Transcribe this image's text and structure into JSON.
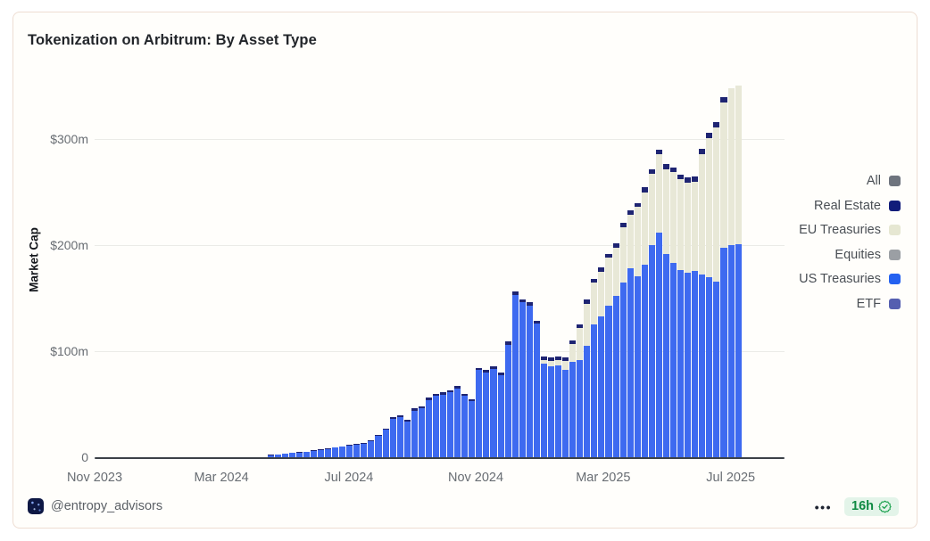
{
  "card": {
    "title": "Tokenization on Arbitrum: By Asset Type"
  },
  "y_axis": {
    "label": "Market Cap",
    "ticks": [
      {
        "label": "$300m",
        "value": 300
      },
      {
        "label": "$200m",
        "value": 200
      },
      {
        "label": "$100m",
        "value": 100
      },
      {
        "label": "0",
        "value": 0
      }
    ]
  },
  "x_axis": {
    "ticks": [
      {
        "label": "Nov 2023",
        "pos": 0.0
      },
      {
        "label": "Mar 2024",
        "pos": 0.196
      },
      {
        "label": "Jul 2024",
        "pos": 0.393
      },
      {
        "label": "Nov 2024",
        "pos": 0.589
      },
      {
        "label": "Mar 2025",
        "pos": 0.786
      },
      {
        "label": "Jul 2025",
        "pos": 0.983
      }
    ]
  },
  "legend": [
    {
      "label": "All",
      "color": "#6e747e"
    },
    {
      "label": "Real Estate",
      "color": "#111c7a"
    },
    {
      "label": "EU Treasuries",
      "color": "#e6e7d2"
    },
    {
      "label": "Equities",
      "color": "#9b9fa4"
    },
    {
      "label": "US Treasuries",
      "color": "#2461f0"
    },
    {
      "label": "ETF",
      "color": "#555fb0"
    }
  ],
  "footer": {
    "handle": "@entropy_advisors",
    "menu": "•••",
    "age": "16h"
  },
  "chart_data": {
    "type": "bar",
    "stacked": true,
    "title": "Tokenization on Arbitrum: By Asset Type",
    "ylabel": "Market Cap",
    "xlabel": "",
    "unit": "USD millions",
    "ylim": [
      0,
      375
    ],
    "grid": "horizontal",
    "legend_position": "right",
    "x_range": [
      "Nov 2023",
      "mid-Jul 2025"
    ],
    "cadence": "weekly",
    "x_tick_labels": [
      "Nov 2023",
      "Mar 2024",
      "Jul 2024",
      "Nov 2024",
      "Mar 2025",
      "Jul 2025"
    ],
    "legend_order": [
      "All",
      "Real Estate",
      "EU Treasuries",
      "Equities",
      "US Treasuries",
      "ETF"
    ],
    "note": "Equities, ETF and All appear in the legend but have no visible area in the chart",
    "series": [
      {
        "name": "US Treasuries",
        "color": "#3e6af0",
        "values": [
          0,
          0,
          0,
          0,
          0,
          0,
          0,
          0,
          0,
          0,
          0,
          0,
          0,
          0,
          0,
          0,
          0,
          0,
          0,
          0,
          0,
          0,
          0,
          0,
          2,
          2.5,
          3,
          4,
          4.5,
          5,
          6,
          7,
          8,
          9,
          10,
          11,
          12,
          13,
          15,
          20,
          26,
          36,
          38,
          34,
          44,
          46,
          54,
          58,
          59,
          61,
          65,
          58,
          53,
          82,
          80,
          83,
          77,
          106,
          153,
          146,
          143,
          126,
          88,
          86,
          87,
          82,
          90,
          92,
          105,
          125,
          133,
          143,
          152,
          165,
          178,
          171,
          182,
          200,
          212,
          192,
          183,
          177,
          174,
          176,
          172,
          170,
          166,
          198,
          200,
          201
        ]
      },
      {
        "name": "EU Treasuries",
        "color": "#e8e8d7",
        "values": [
          0,
          0,
          0,
          0,
          0,
          0,
          0,
          0,
          0,
          0,
          0,
          0,
          0,
          0,
          0,
          0,
          0,
          0,
          0,
          0,
          0,
          0,
          0,
          0,
          0,
          0,
          0,
          0,
          0,
          0,
          0,
          0,
          0,
          0,
          0,
          0,
          0,
          0,
          0,
          0,
          0,
          0,
          0,
          0,
          0,
          0,
          0,
          0,
          0,
          0,
          0,
          0,
          0,
          0,
          0,
          0,
          0,
          0,
          0,
          0,
          0,
          0,
          4,
          5,
          5,
          9,
          17,
          30,
          40,
          40,
          42,
          45,
          46,
          52,
          51,
          65,
          68,
          67,
          74,
          80,
          86,
          85,
          85,
          84,
          114,
          131,
          145,
          137,
          148,
          150
        ]
      },
      {
        "name": "Real Estate",
        "color": "#1e2472",
        "values": [
          0,
          0,
          0,
          0,
          0,
          0,
          0,
          0,
          0,
          0,
          0,
          0,
          0,
          0,
          0,
          0,
          0,
          0,
          0,
          0,
          0,
          0,
          0,
          0,
          0.2,
          0.2,
          0.3,
          0.3,
          0.3,
          0.3,
          0.4,
          0.4,
          0.4,
          0.5,
          0.5,
          0.5,
          0.6,
          0.6,
          0.7,
          0.8,
          1,
          1.5,
          1.5,
          1.5,
          2,
          2,
          2,
          2,
          2,
          2,
          2,
          2,
          2,
          2.5,
          2.5,
          2.5,
          2.5,
          3,
          3,
          3,
          3,
          3,
          3,
          3,
          3,
          3,
          3,
          3.5,
          3.5,
          3.5,
          4,
          4,
          4,
          4,
          4,
          4,
          4.5,
          4.5,
          4.5,
          4.5,
          4.5,
          4.5,
          5,
          5,
          5,
          5,
          5,
          5
        ]
      }
    ]
  }
}
